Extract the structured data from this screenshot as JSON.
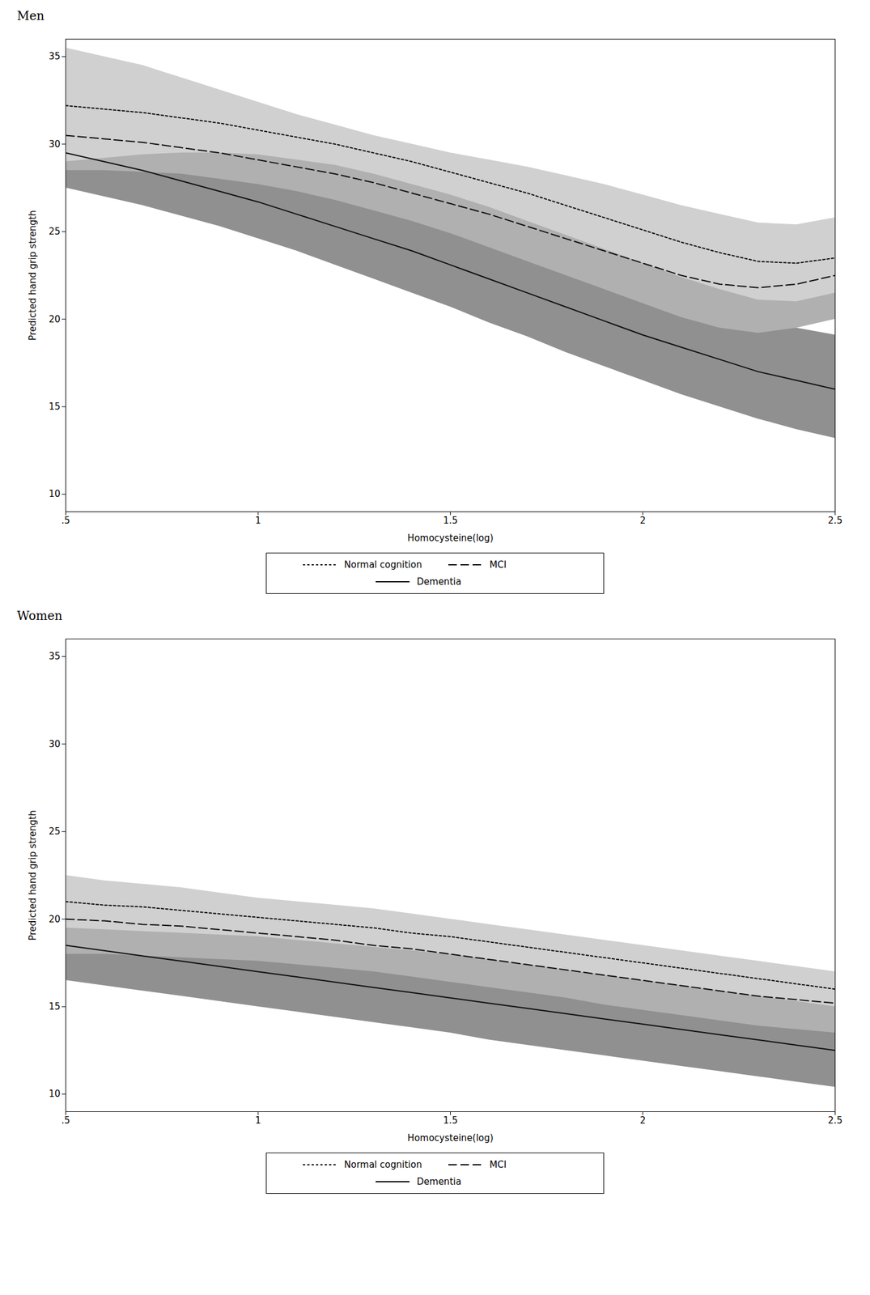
{
  "chart_data": [
    {
      "type": "line",
      "title": "Men",
      "xlabel": "Homocysteine(log)",
      "ylabel": "Predicted hand grip strength",
      "x": [
        0.5,
        0.6,
        0.7,
        0.8,
        0.9,
        1.0,
        1.1,
        1.2,
        1.3,
        1.4,
        1.5,
        1.6,
        1.7,
        1.8,
        1.9,
        2.0,
        2.1,
        2.2,
        2.3,
        2.4,
        2.5
      ],
      "color": "#111111",
      "series": [
        {
          "name": "Normal cognition",
          "color": "#d0d0d0",
          "line_style": "dotted",
          "values": [
            32.2,
            32.0,
            31.8,
            31.5,
            31.2,
            30.8,
            30.4,
            30.0,
            29.5,
            29.0,
            28.4,
            27.8,
            27.2,
            26.5,
            25.8,
            25.1,
            24.4,
            23.8,
            23.3,
            23.2,
            23.5
          ],
          "y_low": [
            29.0,
            29.2,
            29.4,
            29.5,
            29.5,
            29.4,
            29.1,
            28.8,
            28.3,
            27.7,
            27.1,
            26.4,
            25.6,
            24.8,
            24.0,
            23.2,
            22.4,
            21.7,
            21.1,
            21.0,
            21.5
          ],
          "y_high": [
            35.5,
            35.0,
            34.5,
            33.8,
            33.1,
            32.4,
            31.7,
            31.1,
            30.5,
            30.0,
            29.5,
            29.1,
            28.7,
            28.2,
            27.7,
            27.1,
            26.5,
            26.0,
            25.5,
            25.4,
            25.8
          ]
        },
        {
          "name": "MCI",
          "color": "#b0b0b0",
          "line_style": "dashed",
          "values": [
            30.5,
            30.3,
            30.1,
            29.8,
            29.5,
            29.1,
            28.7,
            28.3,
            27.8,
            27.2,
            26.6,
            26.0,
            25.3,
            24.6,
            23.9,
            23.2,
            22.5,
            22.0,
            21.8,
            22.0,
            22.5
          ],
          "y_low": [
            28.5,
            28.5,
            28.4,
            28.3,
            28.0,
            27.7,
            27.3,
            26.8,
            26.2,
            25.6,
            24.9,
            24.1,
            23.3,
            22.5,
            21.7,
            20.9,
            20.1,
            19.5,
            19.2,
            19.5,
            20.0
          ],
          "y_high": [
            32.5,
            32.1,
            31.7,
            31.3,
            30.9,
            30.4,
            29.9,
            29.4,
            28.9,
            28.4,
            27.8,
            27.2,
            26.6,
            26.0,
            25.4,
            24.8,
            24.2,
            23.9,
            23.7,
            24.0,
            24.5
          ]
        },
        {
          "name": "Dementia",
          "color": "#909090",
          "line_style": "solid",
          "values": [
            29.5,
            29.0,
            28.5,
            27.9,
            27.3,
            26.7,
            26.0,
            25.3,
            24.6,
            23.9,
            23.1,
            22.3,
            21.5,
            20.7,
            19.9,
            19.1,
            18.4,
            17.7,
            17.0,
            16.5,
            16.0
          ],
          "y_low": [
            27.5,
            27.0,
            26.5,
            25.9,
            25.3,
            24.6,
            23.9,
            23.1,
            22.3,
            21.5,
            20.7,
            19.8,
            19.0,
            18.1,
            17.3,
            16.5,
            15.7,
            15.0,
            14.3,
            13.7,
            13.2
          ],
          "y_high": [
            31.5,
            31.0,
            30.5,
            29.9,
            29.3,
            28.8,
            28.2,
            27.5,
            26.9,
            26.3,
            25.6,
            24.9,
            24.1,
            23.4,
            22.7,
            21.9,
            21.2,
            20.6,
            20.0,
            19.5,
            19.1
          ]
        }
      ],
      "xlim": [
        0.5,
        2.5
      ],
      "ylim": [
        9,
        36
      ],
      "xticks": [
        {
          "value": 0.5,
          "label": ".5"
        },
        1,
        1.5,
        2,
        2.5
      ],
      "yticks": [
        10,
        15,
        20,
        25,
        30,
        35
      ],
      "grid": false,
      "legend": "bottom"
    },
    {
      "type": "line",
      "title": "Women",
      "xlabel": "Homocysteine(log)",
      "ylabel": "Predicted hand grip strength",
      "x": [
        0.5,
        0.6,
        0.7,
        0.8,
        0.9,
        1.0,
        1.1,
        1.2,
        1.3,
        1.4,
        1.5,
        1.6,
        1.7,
        1.8,
        1.9,
        2.0,
        2.1,
        2.2,
        2.3,
        2.4,
        2.5
      ],
      "color": "#111111",
      "series": [
        {
          "name": "Normal cognition",
          "color": "#d0d0d0",
          "line_style": "dotted",
          "values": [
            21.0,
            20.8,
            20.7,
            20.5,
            20.3,
            20.1,
            19.9,
            19.7,
            19.5,
            19.2,
            19.0,
            18.7,
            18.4,
            18.1,
            17.8,
            17.5,
            17.2,
            16.9,
            16.6,
            16.3,
            16.0
          ],
          "y_low": [
            19.5,
            19.4,
            19.3,
            19.2,
            19.1,
            19.0,
            18.8,
            18.6,
            18.4,
            18.2,
            18.0,
            17.7,
            17.4,
            17.1,
            16.8,
            16.5,
            16.2,
            15.9,
            15.6,
            15.3,
            15.0
          ],
          "y_high": [
            22.5,
            22.2,
            22.0,
            21.8,
            21.5,
            21.2,
            21.0,
            20.8,
            20.6,
            20.3,
            20.0,
            19.7,
            19.4,
            19.1,
            18.8,
            18.5,
            18.2,
            17.9,
            17.6,
            17.3,
            17.0
          ]
        },
        {
          "name": "MCI",
          "color": "#b0b0b0",
          "line_style": "dashed",
          "values": [
            20.0,
            19.9,
            19.7,
            19.6,
            19.4,
            19.2,
            19.0,
            18.8,
            18.5,
            18.3,
            18.0,
            17.7,
            17.4,
            17.1,
            16.8,
            16.5,
            16.2,
            15.9,
            15.6,
            15.4,
            15.2
          ],
          "y_low": [
            18.0,
            18.0,
            17.9,
            17.8,
            17.7,
            17.6,
            17.4,
            17.2,
            17.0,
            16.7,
            16.4,
            16.1,
            15.8,
            15.5,
            15.1,
            14.8,
            14.5,
            14.2,
            13.9,
            13.7,
            13.5
          ],
          "y_high": [
            22.0,
            21.7,
            21.5,
            21.3,
            21.1,
            20.8,
            20.6,
            20.4,
            20.1,
            19.8,
            19.6,
            19.3,
            19.0,
            18.7,
            18.5,
            18.2,
            17.9,
            17.6,
            17.3,
            17.1,
            16.9
          ]
        },
        {
          "name": "Dementia",
          "color": "#909090",
          "line_style": "solid",
          "values": [
            18.5,
            18.2,
            17.9,
            17.6,
            17.3,
            17.0,
            16.7,
            16.4,
            16.1,
            15.8,
            15.5,
            15.2,
            14.9,
            14.6,
            14.3,
            14.0,
            13.7,
            13.4,
            13.1,
            12.8,
            12.5
          ],
          "y_low": [
            16.5,
            16.2,
            15.9,
            15.6,
            15.3,
            15.0,
            14.7,
            14.4,
            14.1,
            13.8,
            13.5,
            13.1,
            12.8,
            12.5,
            12.2,
            11.9,
            11.6,
            11.3,
            11.0,
            10.7,
            10.4
          ],
          "y_high": [
            20.5,
            20.2,
            19.9,
            19.6,
            19.3,
            19.0,
            18.7,
            18.4,
            18.1,
            17.8,
            17.5,
            17.2,
            16.9,
            16.7,
            16.4,
            16.1,
            15.8,
            15.5,
            15.2,
            14.9,
            14.6
          ]
        }
      ],
      "xlim": [
        0.5,
        2.5
      ],
      "ylim": [
        9,
        36
      ],
      "xticks": [
        {
          "value": 0.5,
          "label": ".5"
        },
        1,
        1.5,
        2,
        2.5
      ],
      "yticks": [
        10,
        15,
        20,
        25,
        30,
        35
      ],
      "grid": false,
      "legend": "bottom"
    }
  ]
}
